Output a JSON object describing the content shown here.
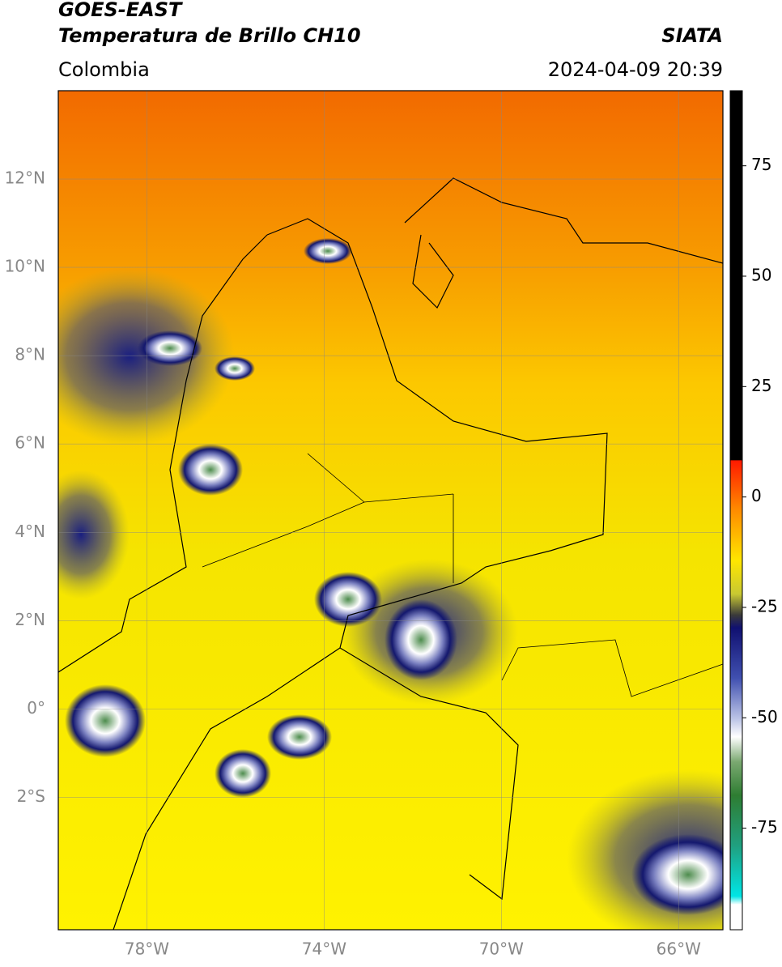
{
  "header": {
    "title": "GOES-EAST",
    "subtitle": "Temperatura de Brillo CH10",
    "region": "Colombia",
    "source": "SIATA",
    "timestamp": "2024-04-09 20:39"
  },
  "map": {
    "xlim": [
      -80,
      -65
    ],
    "ylim": [
      -5,
      14
    ],
    "xticks": [
      {
        "value": -78,
        "label": "78°W"
      },
      {
        "value": -74,
        "label": "74°W"
      },
      {
        "value": -70,
        "label": "70°W"
      },
      {
        "value": -66,
        "label": "66°W"
      }
    ],
    "yticks": [
      {
        "value": 12,
        "label": "12°N"
      },
      {
        "value": 10,
        "label": "10°N"
      },
      {
        "value": 8,
        "label": "8°N"
      },
      {
        "value": 6,
        "label": "6°N"
      },
      {
        "value": 4,
        "label": "4°N"
      },
      {
        "value": 2,
        "label": "2°N"
      },
      {
        "value": 0,
        "label": "0°"
      },
      {
        "value": -2,
        "label": "2°S"
      }
    ],
    "grid": true
  },
  "colorbar": {
    "lim": [
      -98,
      92
    ],
    "ticks": [
      75,
      50,
      25,
      0,
      -25,
      -50,
      -75
    ]
  }
}
